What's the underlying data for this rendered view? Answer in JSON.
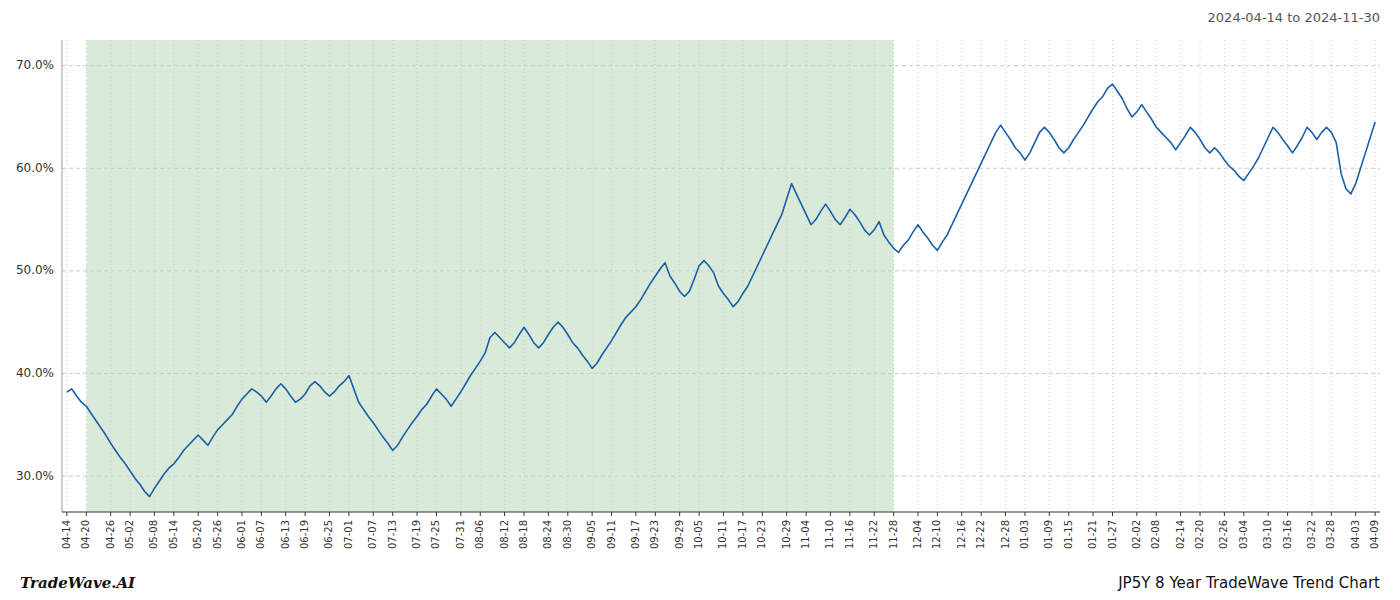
{
  "chart_data": {
    "type": "line",
    "title": "2024-04-14 to 2024-11-30",
    "annotations": [
      "TradeWave.AI",
      "JP5Y 8 Year TradeWave Trend Chart"
    ],
    "color": "#1a5fa8",
    "grid": true,
    "ylim": [
      26.5,
      72.5
    ],
    "yticks": [
      {
        "value": 30.0,
        "label": "30.0%"
      },
      {
        "value": 40.0,
        "label": "40.0%"
      },
      {
        "value": 50.0,
        "label": "50.0%"
      },
      {
        "value": 60.0,
        "label": "60.0%"
      },
      {
        "value": 70.0,
        "label": "70.0%"
      }
    ],
    "shaded_region": {
      "start": "04-20",
      "end": "11-28",
      "color": "#d9ead9"
    },
    "categories": [
      "04-14",
      null,
      null,
      null,
      "04-20",
      null,
      null,
      null,
      null,
      "04-26",
      null,
      null,
      null,
      "05-02",
      null,
      null,
      null,
      null,
      "05-08",
      null,
      null,
      null,
      "05-14",
      null,
      null,
      null,
      null,
      "05-20",
      null,
      null,
      null,
      "05-26",
      null,
      null,
      null,
      null,
      "06-01",
      null,
      null,
      null,
      "06-07",
      null,
      null,
      null,
      null,
      "06-13",
      null,
      null,
      null,
      "06-19",
      null,
      null,
      null,
      null,
      "06-25",
      null,
      null,
      null,
      "07-01",
      null,
      null,
      null,
      null,
      "07-07",
      null,
      null,
      null,
      "07-13",
      null,
      null,
      null,
      null,
      "07-19",
      null,
      null,
      null,
      "07-25",
      null,
      null,
      null,
      null,
      "07-31",
      null,
      null,
      null,
      "08-06",
      null,
      null,
      null,
      null,
      "08-12",
      null,
      null,
      null,
      "08-18",
      null,
      null,
      null,
      null,
      "08-24",
      null,
      null,
      null,
      "08-30",
      null,
      null,
      null,
      null,
      "09-05",
      null,
      null,
      null,
      "09-11",
      null,
      null,
      null,
      null,
      "09-17",
      null,
      null,
      null,
      "09-23",
      null,
      null,
      null,
      null,
      "09-29",
      null,
      null,
      null,
      "10-05",
      null,
      null,
      null,
      null,
      "10-11",
      null,
      null,
      null,
      "10-17",
      null,
      null,
      null,
      "10-23",
      null,
      null,
      null,
      null,
      "10-29",
      null,
      null,
      null,
      "11-04",
      null,
      null,
      null,
      null,
      "11-10",
      null,
      null,
      null,
      "11-16",
      null,
      null,
      null,
      null,
      "11-22",
      null,
      null,
      null,
      "11-28",
      null,
      null,
      null,
      null,
      "12-04",
      null,
      null,
      null,
      "12-10",
      null,
      null,
      null,
      null,
      "12-16",
      null,
      null,
      null,
      "12-22",
      null,
      null,
      null,
      null,
      "12-28",
      null,
      null,
      null,
      "01-03",
      null,
      null,
      null,
      null,
      "01-09",
      null,
      null,
      null,
      "01-15",
      null,
      null,
      null,
      null,
      "01-21",
      null,
      null,
      null,
      "01-27",
      null,
      null,
      null,
      null,
      "02-02",
      null,
      null,
      null,
      "02-08",
      null,
      null,
      null,
      null,
      "02-14",
      null,
      null,
      null,
      "02-20",
      null,
      null,
      null,
      null,
      "02-26",
      null,
      null,
      null,
      "03-04",
      null,
      null,
      null,
      null,
      "03-10",
      null,
      null,
      null,
      "03-16",
      null,
      null,
      null,
      null,
      "03-22",
      null,
      null,
      null,
      "03-28",
      null,
      null,
      null,
      null,
      "04-03",
      null,
      null,
      null,
      "04-09"
    ],
    "values": [
      38.2,
      38.5,
      37.8,
      37.2,
      36.8,
      36.1,
      35.4,
      34.7,
      34.0,
      33.2,
      32.5,
      31.8,
      31.2,
      30.5,
      29.8,
      29.2,
      28.5,
      28.0,
      28.8,
      29.5,
      30.2,
      30.8,
      31.2,
      31.8,
      32.5,
      33.0,
      33.5,
      34.0,
      33.5,
      33.0,
      33.8,
      34.5,
      35.0,
      35.5,
      36.0,
      36.8,
      37.5,
      38.0,
      38.5,
      38.2,
      37.8,
      37.2,
      37.8,
      38.5,
      39.0,
      38.5,
      37.8,
      37.2,
      37.5,
      38.0,
      38.8,
      39.2,
      38.8,
      38.2,
      37.8,
      38.2,
      38.8,
      39.2,
      39.8,
      38.5,
      37.2,
      36.5,
      35.8,
      35.2,
      34.5,
      33.8,
      33.2,
      32.5,
      33.0,
      33.8,
      34.5,
      35.2,
      35.8,
      36.5,
      37.0,
      37.8,
      38.5,
      38.0,
      37.5,
      36.8,
      37.5,
      38.2,
      39.0,
      39.8,
      40.5,
      41.2,
      42.0,
      43.5,
      44.0,
      43.5,
      43.0,
      42.5,
      43.0,
      43.8,
      44.5,
      43.8,
      43.0,
      42.5,
      43.0,
      43.8,
      44.5,
      45.0,
      44.5,
      43.8,
      43.0,
      42.5,
      41.8,
      41.2,
      40.5,
      41.0,
      41.8,
      42.5,
      43.2,
      44.0,
      44.8,
      45.5,
      46.0,
      46.5,
      47.2,
      48.0,
      48.8,
      49.5,
      50.2,
      50.8,
      49.5,
      48.8,
      48.0,
      47.5,
      48.0,
      49.2,
      50.5,
      51.0,
      50.5,
      49.8,
      48.5,
      47.8,
      47.2,
      46.5,
      47.0,
      47.8,
      48.5,
      49.5,
      50.5,
      51.5,
      52.5,
      53.5,
      54.5,
      55.5,
      57.0,
      58.5,
      57.5,
      56.5,
      55.5,
      54.5,
      55.0,
      55.8,
      56.5,
      55.8,
      55.0,
      54.5,
      55.2,
      56.0,
      55.5,
      54.8,
      54.0,
      53.5,
      54.0,
      54.8,
      53.5,
      52.8,
      52.2,
      51.8,
      52.5,
      53.0,
      53.8,
      54.5,
      53.8,
      53.2,
      52.5,
      52.0,
      52.8,
      53.5,
      54.5,
      55.5,
      56.5,
      57.5,
      58.5,
      59.5,
      60.5,
      61.5,
      62.5,
      63.5,
      64.2,
      63.5,
      62.8,
      62.0,
      61.5,
      60.8,
      61.5,
      62.5,
      63.5,
      64.0,
      63.5,
      62.8,
      62.0,
      61.5,
      62.0,
      62.8,
      63.5,
      64.2,
      65.0,
      65.8,
      66.5,
      67.0,
      67.8,
      68.2,
      67.5,
      66.8,
      65.8,
      65.0,
      65.5,
      66.2,
      65.5,
      64.8,
      64.0,
      63.5,
      63.0,
      62.5,
      61.8,
      62.5,
      63.2,
      64.0,
      63.5,
      62.8,
      62.0,
      61.5,
      62.0,
      61.5,
      60.8,
      60.2,
      59.8,
      59.2,
      58.8,
      59.5,
      60.2,
      61.0,
      62.0,
      63.0,
      64.0,
      63.5,
      62.8,
      62.2,
      61.5,
      62.2,
      63.0,
      64.0,
      63.5,
      62.8,
      63.5,
      64.0,
      63.5,
      62.5,
      59.5,
      58.0,
      57.5,
      58.5,
      60.0,
      61.5,
      63.0,
      64.5
    ]
  }
}
